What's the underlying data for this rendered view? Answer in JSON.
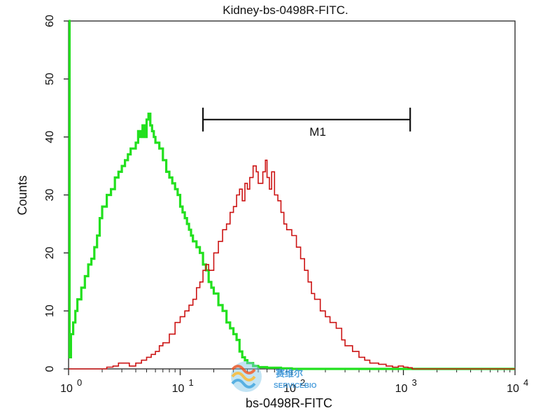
{
  "chart_data": {
    "type": "line",
    "title": "Kidney-bs-0498R-FITC.",
    "xlabel": "bs-0498R-FITC",
    "ylabel": "Counts",
    "xscale": "log",
    "xlim": [
      1,
      10000
    ],
    "ylim": [
      0,
      60
    ],
    "yticks": [
      0,
      10,
      20,
      30,
      40,
      50,
      60
    ],
    "xticks": [
      {
        "value": 1,
        "base": "10",
        "exp": "0"
      },
      {
        "value": 10,
        "base": "10",
        "exp": "1"
      },
      {
        "value": 100,
        "base": "10",
        "exp": "2"
      },
      {
        "value": 1000,
        "base": "10",
        "exp": "3"
      },
      {
        "value": 10000,
        "base": "10",
        "exp": "4"
      }
    ],
    "grid": false,
    "series": [
      {
        "color": "#22e01e",
        "x": [
          1.0,
          1.02,
          1.05,
          1.1,
          1.15,
          1.2,
          1.3,
          1.4,
          1.5,
          1.6,
          1.7,
          1.8,
          1.9,
          2.0,
          2.2,
          2.4,
          2.6,
          2.8,
          3.0,
          3.2,
          3.4,
          3.6,
          3.8,
          4.0,
          4.2,
          4.4,
          4.6,
          4.8,
          5.0,
          5.2,
          5.4,
          5.6,
          5.8,
          6.0,
          6.5,
          7.0,
          7.5,
          8.0,
          8.5,
          9.0,
          9.5,
          10.0,
          10.5,
          11.0,
          11.5,
          12.0,
          12.5,
          13.0,
          14.0,
          15.0,
          16.0,
          17.0,
          18.0,
          19.0,
          20.0,
          22.0,
          24.0,
          26.0,
          28.0,
          30.0,
          32.0,
          34.0,
          36.0,
          38.0,
          40.0,
          45.0,
          50.0,
          60.0,
          80.0,
          100.0,
          150.0,
          200.0,
          300.0,
          500.0,
          1000.0,
          2000.0,
          5000.0,
          10000.0
        ],
        "y": [
          60,
          2,
          6,
          8,
          10,
          12,
          14,
          16,
          18,
          19,
          21,
          23,
          26,
          28,
          30,
          31,
          33,
          34,
          35,
          36,
          37,
          38,
          38,
          39,
          41,
          40,
          42,
          40,
          43,
          44,
          42,
          41,
          40,
          39,
          38,
          36,
          34,
          33,
          32,
          31,
          30,
          28,
          27,
          26,
          25,
          24,
          23,
          22,
          21,
          20,
          18,
          17,
          15,
          14,
          13,
          11,
          10,
          8,
          7,
          6,
          5,
          3,
          2,
          1.5,
          1,
          0.5,
          0.3,
          0.2,
          0.1,
          0,
          0,
          0,
          0,
          0,
          0,
          0,
          0,
          0
        ]
      },
      {
        "color": "#cc1414",
        "x": [
          1.0,
          2.0,
          2.2,
          2.5,
          2.8,
          3.0,
          3.5,
          4.0,
          4.5,
          5.0,
          5.5,
          6.0,
          6.5,
          7.0,
          8.0,
          9.0,
          10.0,
          11.0,
          12.0,
          13.0,
          14.0,
          15.0,
          16.0,
          17.0,
          18.0,
          20.0,
          22.0,
          24.0,
          26.0,
          28.0,
          30.0,
          32.0,
          34.0,
          36.0,
          38.0,
          40.0,
          42.0,
          45.0,
          48.0,
          50.0,
          55.0,
          58.0,
          60.0,
          63.0,
          66.0,
          70.0,
          75.0,
          80.0,
          85.0,
          90.0,
          100.0,
          110.0,
          120.0,
          130.0,
          140.0,
          150.0,
          160.0,
          180.0,
          200.0,
          220.0,
          250.0,
          280.0,
          300.0,
          350.0,
          400.0,
          450.0,
          500.0,
          600.0,
          700.0,
          800.0,
          900.0,
          1000.0,
          1100.0,
          1200.0,
          1500.0,
          2000.0,
          5000.0,
          10000.0
        ],
        "y": [
          0,
          0,
          0.3,
          0.5,
          1,
          1,
          0.5,
          1,
          1.5,
          2,
          2.5,
          3,
          4,
          4.5,
          6,
          8,
          9,
          10,
          11,
          12,
          14,
          15,
          17,
          18,
          17,
          20,
          22,
          24,
          25,
          27,
          28,
          30,
          31,
          29,
          32,
          31,
          33,
          35,
          34,
          32,
          34,
          36,
          33,
          31,
          34,
          30,
          29,
          27,
          25,
          24,
          23,
          21,
          19,
          17,
          15,
          13,
          12,
          10,
          9,
          8,
          7,
          5,
          4,
          3,
          2,
          1.5,
          1,
          0.8,
          0.5,
          0.3,
          0.5,
          0.3,
          0.2,
          0,
          0,
          0,
          0,
          0
        ]
      }
    ],
    "annotations": [
      {
        "label": "M1",
        "x_start": 16,
        "x_end": 1150,
        "y": 43
      }
    ]
  },
  "watermark": {
    "text_cn": "赛维尔",
    "text_en": "SERVICEBIO"
  }
}
